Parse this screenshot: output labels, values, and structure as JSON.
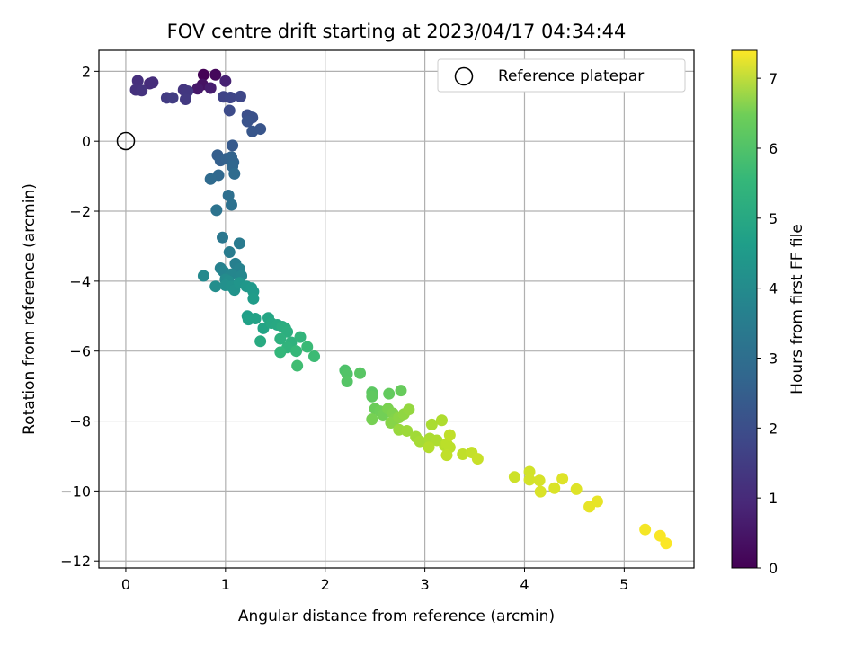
{
  "chart_data": {
    "type": "scatter",
    "title": "FOV centre drift starting at 2023/04/17 04:34:44",
    "xlabel": "Angular distance from reference (arcmin)",
    "ylabel": "Rotation from reference (arcmin)",
    "xlim": [
      -0.27,
      5.7
    ],
    "ylim": [
      -12.2,
      2.6
    ],
    "xticks": [
      0,
      1,
      2,
      3,
      4,
      5
    ],
    "yticks": [
      -12,
      -10,
      -8,
      -6,
      -4,
      -2,
      0,
      2
    ],
    "x_tick_labels": [
      "0",
      "1",
      "2",
      "3",
      "4",
      "5"
    ],
    "y_tick_labels": [
      "−12",
      "−10",
      "−8",
      "−6",
      "−4",
      "−2",
      "0",
      "2"
    ],
    "grid": true,
    "colormap": "viridis",
    "colorbar": {
      "label": "Hours from first FF file",
      "range": [
        0,
        7.4
      ],
      "ticks": [
        0,
        1,
        2,
        3,
        4,
        5,
        6,
        7
      ],
      "tick_labels": [
        "0",
        "1",
        "2",
        "3",
        "4",
        "5",
        "6",
        "7"
      ]
    },
    "reference": {
      "x": 0,
      "y": 0,
      "label": "Reference platepar"
    },
    "legend_position": "top-right",
    "points": [
      {
        "x": 0.78,
        "y": 1.9,
        "t": 0.05
      },
      {
        "x": 0.9,
        "y": 1.9,
        "t": 0.15
      },
      {
        "x": 0.77,
        "y": 1.62,
        "t": 0.35
      },
      {
        "x": 0.72,
        "y": 1.5,
        "t": 0.5
      },
      {
        "x": 0.85,
        "y": 1.52,
        "t": 0.6
      },
      {
        "x": 1.0,
        "y": 1.72,
        "t": 0.7
      },
      {
        "x": 0.24,
        "y": 1.65,
        "t": 0.9
      },
      {
        "x": 0.27,
        "y": 1.68,
        "t": 0.95
      },
      {
        "x": 0.12,
        "y": 1.73,
        "t": 1.0
      },
      {
        "x": 0.1,
        "y": 1.47,
        "t": 1.05
      },
      {
        "x": 0.16,
        "y": 1.45,
        "t": 1.1
      },
      {
        "x": 0.58,
        "y": 1.47,
        "t": 1.15
      },
      {
        "x": 0.62,
        "y": 1.43,
        "t": 1.2
      },
      {
        "x": 0.6,
        "y": 1.2,
        "t": 1.25
      },
      {
        "x": 0.41,
        "y": 1.24,
        "t": 1.3
      },
      {
        "x": 0.47,
        "y": 1.24,
        "t": 1.35
      },
      {
        "x": 0.98,
        "y": 1.27,
        "t": 1.5
      },
      {
        "x": 1.05,
        "y": 1.25,
        "t": 1.55
      },
      {
        "x": 1.15,
        "y": 1.28,
        "t": 1.6
      },
      {
        "x": 1.04,
        "y": 0.88,
        "t": 1.7
      },
      {
        "x": 1.22,
        "y": 0.75,
        "t": 1.8
      },
      {
        "x": 1.27,
        "y": 0.68,
        "t": 1.85
      },
      {
        "x": 1.22,
        "y": 0.57,
        "t": 1.9
      },
      {
        "x": 1.35,
        "y": 0.35,
        "t": 1.95
      },
      {
        "x": 1.27,
        "y": 0.28,
        "t": 2.0
      },
      {
        "x": 1.07,
        "y": -0.12,
        "t": 2.1
      },
      {
        "x": 0.92,
        "y": -0.4,
        "t": 2.2
      },
      {
        "x": 0.95,
        "y": -0.55,
        "t": 2.25
      },
      {
        "x": 1.01,
        "y": -0.5,
        "t": 2.3
      },
      {
        "x": 1.06,
        "y": -0.45,
        "t": 2.35
      },
      {
        "x": 1.08,
        "y": -0.6,
        "t": 2.4
      },
      {
        "x": 1.07,
        "y": -0.72,
        "t": 2.45
      },
      {
        "x": 0.93,
        "y": -0.97,
        "t": 2.5
      },
      {
        "x": 0.85,
        "y": -1.08,
        "t": 2.55
      },
      {
        "x": 1.09,
        "y": -0.93,
        "t": 2.6
      },
      {
        "x": 1.03,
        "y": -1.55,
        "t": 2.7
      },
      {
        "x": 1.06,
        "y": -1.82,
        "t": 2.75
      },
      {
        "x": 0.91,
        "y": -1.97,
        "t": 2.8
      },
      {
        "x": 0.97,
        "y": -2.75,
        "t": 2.95
      },
      {
        "x": 1.14,
        "y": -2.92,
        "t": 3.05
      },
      {
        "x": 1.04,
        "y": -3.17,
        "t": 3.1
      },
      {
        "x": 1.1,
        "y": -3.5,
        "t": 3.2
      },
      {
        "x": 0.95,
        "y": -3.63,
        "t": 3.25
      },
      {
        "x": 1.14,
        "y": -3.65,
        "t": 3.3
      },
      {
        "x": 0.98,
        "y": -3.72,
        "t": 3.35
      },
      {
        "x": 1.06,
        "y": -3.8,
        "t": 3.4
      },
      {
        "x": 1.16,
        "y": -3.85,
        "t": 3.45
      },
      {
        "x": 0.78,
        "y": -3.85,
        "t": 3.5
      },
      {
        "x": 1.0,
        "y": -3.95,
        "t": 3.55
      },
      {
        "x": 1.03,
        "y": -4.0,
        "t": 3.6
      },
      {
        "x": 0.9,
        "y": -4.15,
        "t": 3.65
      },
      {
        "x": 1.0,
        "y": -4.12,
        "t": 3.7
      },
      {
        "x": 1.06,
        "y": -4.15,
        "t": 3.75
      },
      {
        "x": 1.09,
        "y": -4.25,
        "t": 3.8
      },
      {
        "x": 1.14,
        "y": -4.05,
        "t": 3.85
      },
      {
        "x": 1.21,
        "y": -4.15,
        "t": 3.9
      },
      {
        "x": 1.26,
        "y": -4.2,
        "t": 3.95
      },
      {
        "x": 1.28,
        "y": -4.3,
        "t": 4.0
      },
      {
        "x": 1.28,
        "y": -4.5,
        "t": 4.05
      },
      {
        "x": 1.22,
        "y": -5.0,
        "t": 4.15
      },
      {
        "x": 1.23,
        "y": -5.1,
        "t": 4.2
      },
      {
        "x": 1.3,
        "y": -5.07,
        "t": 4.25
      },
      {
        "x": 1.38,
        "y": -5.35,
        "t": 4.3
      },
      {
        "x": 1.43,
        "y": -5.05,
        "t": 4.35
      },
      {
        "x": 1.46,
        "y": -5.2,
        "t": 4.4
      },
      {
        "x": 1.52,
        "y": -5.25,
        "t": 4.45
      },
      {
        "x": 1.35,
        "y": -5.72,
        "t": 4.5
      },
      {
        "x": 1.57,
        "y": -5.3,
        "t": 4.55
      },
      {
        "x": 1.6,
        "y": -5.35,
        "t": 4.6
      },
      {
        "x": 1.62,
        "y": -5.45,
        "t": 4.65
      },
      {
        "x": 1.55,
        "y": -5.65,
        "t": 4.7
      },
      {
        "x": 1.66,
        "y": -5.75,
        "t": 4.75
      },
      {
        "x": 1.62,
        "y": -5.9,
        "t": 4.8
      },
      {
        "x": 1.75,
        "y": -5.6,
        "t": 4.85
      },
      {
        "x": 1.55,
        "y": -6.03,
        "t": 4.9
      },
      {
        "x": 1.71,
        "y": -6.0,
        "t": 4.95
      },
      {
        "x": 1.82,
        "y": -5.88,
        "t": 5.0
      },
      {
        "x": 1.89,
        "y": -6.15,
        "t": 5.05
      },
      {
        "x": 1.72,
        "y": -6.42,
        "t": 5.1
      },
      {
        "x": 2.2,
        "y": -6.55,
        "t": 5.3
      },
      {
        "x": 2.22,
        "y": -6.65,
        "t": 5.35
      },
      {
        "x": 2.22,
        "y": -6.87,
        "t": 5.4
      },
      {
        "x": 2.35,
        "y": -6.63,
        "t": 5.45
      },
      {
        "x": 2.47,
        "y": -7.18,
        "t": 5.5
      },
      {
        "x": 2.47,
        "y": -7.3,
        "t": 5.55
      },
      {
        "x": 2.64,
        "y": -7.22,
        "t": 5.6
      },
      {
        "x": 2.76,
        "y": -7.13,
        "t": 5.65
      },
      {
        "x": 2.5,
        "y": -7.65,
        "t": 5.7
      },
      {
        "x": 2.55,
        "y": -7.72,
        "t": 5.75
      },
      {
        "x": 2.58,
        "y": -7.82,
        "t": 5.8
      },
      {
        "x": 2.47,
        "y": -7.95,
        "t": 5.85
      },
      {
        "x": 2.63,
        "y": -7.65,
        "t": 5.9
      },
      {
        "x": 2.68,
        "y": -7.78,
        "t": 5.95
      },
      {
        "x": 2.7,
        "y": -7.95,
        "t": 6.0
      },
      {
        "x": 2.66,
        "y": -8.05,
        "t": 6.05
      },
      {
        "x": 2.74,
        "y": -7.9,
        "t": 6.1
      },
      {
        "x": 2.79,
        "y": -7.8,
        "t": 6.15
      },
      {
        "x": 2.84,
        "y": -7.67,
        "t": 6.2
      },
      {
        "x": 2.74,
        "y": -8.25,
        "t": 6.25
      },
      {
        "x": 2.82,
        "y": -8.28,
        "t": 6.3
      },
      {
        "x": 2.91,
        "y": -8.45,
        "t": 6.35
      },
      {
        "x": 2.95,
        "y": -8.58,
        "t": 6.4
      },
      {
        "x": 3.05,
        "y": -8.5,
        "t": 6.45
      },
      {
        "x": 3.12,
        "y": -8.55,
        "t": 6.5
      },
      {
        "x": 3.04,
        "y": -8.75,
        "t": 6.55
      },
      {
        "x": 3.07,
        "y": -8.1,
        "t": 6.45
      },
      {
        "x": 3.17,
        "y": -7.98,
        "t": 6.5
      },
      {
        "x": 3.2,
        "y": -8.7,
        "t": 6.6
      },
      {
        "x": 3.22,
        "y": -8.65,
        "t": 6.65
      },
      {
        "x": 3.25,
        "y": -8.4,
        "t": 6.7
      },
      {
        "x": 3.25,
        "y": -8.75,
        "t": 6.65
      },
      {
        "x": 3.22,
        "y": -8.98,
        "t": 6.7
      },
      {
        "x": 3.38,
        "y": -8.95,
        "t": 6.7
      },
      {
        "x": 3.47,
        "y": -8.9,
        "t": 6.75
      },
      {
        "x": 3.53,
        "y": -9.08,
        "t": 6.8
      },
      {
        "x": 3.9,
        "y": -9.6,
        "t": 6.85
      },
      {
        "x": 4.05,
        "y": -9.45,
        "t": 6.9
      },
      {
        "x": 4.05,
        "y": -9.68,
        "t": 6.92
      },
      {
        "x": 4.15,
        "y": -9.7,
        "t": 6.95
      },
      {
        "x": 4.16,
        "y": -10.02,
        "t": 7.0
      },
      {
        "x": 4.3,
        "y": -9.92,
        "t": 7.0
      },
      {
        "x": 4.38,
        "y": -9.65,
        "t": 7.05
      },
      {
        "x": 4.52,
        "y": -9.95,
        "t": 7.05
      },
      {
        "x": 4.65,
        "y": -10.45,
        "t": 7.15
      },
      {
        "x": 4.73,
        "y": -10.3,
        "t": 7.15
      },
      {
        "x": 5.21,
        "y": -11.1,
        "t": 7.3
      },
      {
        "x": 5.36,
        "y": -11.28,
        "t": 7.35
      },
      {
        "x": 5.42,
        "y": -11.5,
        "t": 7.38
      }
    ]
  }
}
